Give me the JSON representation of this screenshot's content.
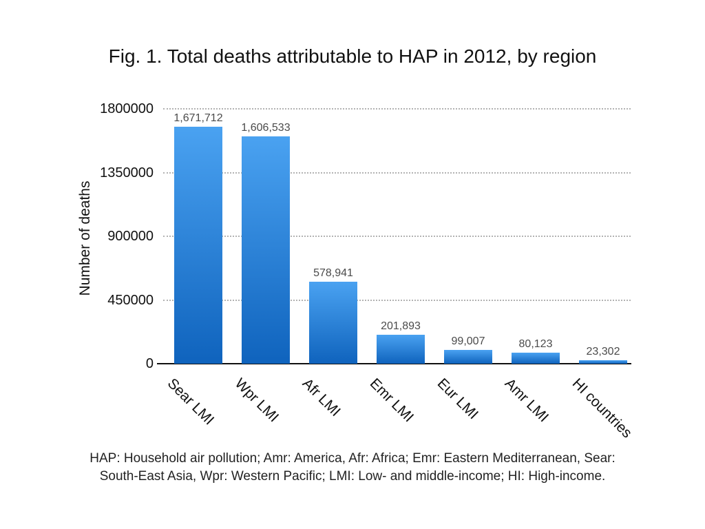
{
  "figure": {
    "footnote_lines": [
      "HAP: Household air pollution; Amr: America, Afr: Africa; Emr: Eastern Mediterranean, Sear:",
      "South-East Asia, Wpr: Western Pacific; LMI: Low- and middle-income; HI: High-income."
    ]
  },
  "chart_data": {
    "type": "bar",
    "title": "Fig. 1. Total deaths attributable to HAP in 2012, by region",
    "categories": [
      "Sear LMI",
      "Wpr LMI",
      "Afr LMI",
      "Emr LMI",
      "Eur LMI",
      "Amr LMI",
      "HI countries"
    ],
    "values": [
      1671712,
      1606533,
      578941,
      201893,
      99007,
      80123,
      23302
    ],
    "value_labels": [
      "1,671,712",
      "1,606,533",
      "578,941",
      "201,893",
      "99,007",
      "80,123",
      "23,302"
    ],
    "xlabel": "",
    "ylabel": "Number of deaths",
    "ylim": [
      0,
      1800000
    ],
    "yticks": [
      0,
      450000,
      900000,
      1350000,
      1800000
    ],
    "ytick_labels": [
      "0",
      "450000",
      "900000",
      "1350000",
      "1800000"
    ],
    "grid": "horizontal-dotted",
    "legend": "none",
    "colors": {
      "bar_gradient_top": "#4AA2F1",
      "bar_gradient_bottom": "#0F63BD",
      "gridline": "#999999",
      "axis_line": "#111111",
      "value_label_text": "#4a4a4a",
      "text": "#000000"
    }
  }
}
